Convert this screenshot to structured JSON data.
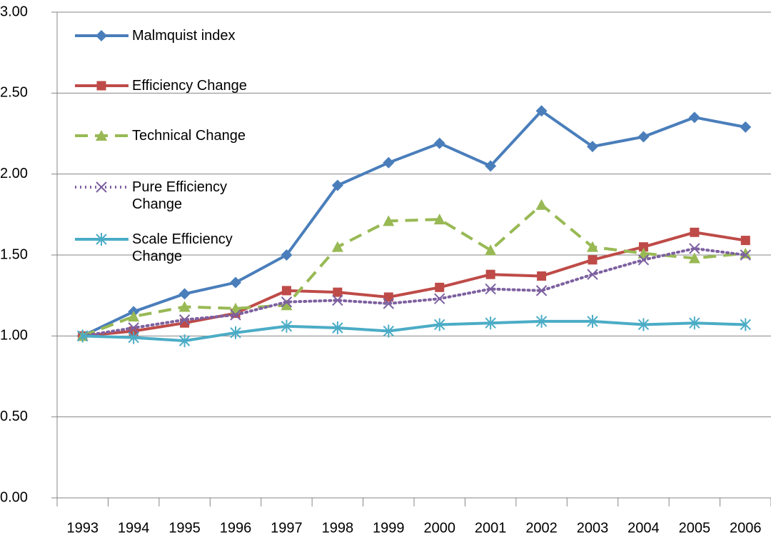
{
  "chart_data": {
    "type": "line",
    "categories": [
      "1993",
      "1994",
      "1995",
      "1996",
      "1997",
      "1998",
      "1999",
      "2000",
      "2001",
      "2002",
      "2003",
      "2004",
      "2005",
      "2006"
    ],
    "ylim": [
      0,
      3
    ],
    "yticks": [
      {
        "value": 0,
        "label": "0.00"
      },
      {
        "value": 0.5,
        "label": "0.50"
      },
      {
        "value": 1,
        "label": "1.00"
      },
      {
        "value": 1.5,
        "label": "1.50"
      },
      {
        "value": 2,
        "label": "2.00"
      },
      {
        "value": 2.5,
        "label": "2.50"
      },
      {
        "value": 3,
        "label": "3.00"
      }
    ],
    "grid": true,
    "legend": "upper left",
    "series": [
      {
        "name": "Malmquist index",
        "color": "#4a7ebb",
        "marker": "diamond",
        "dash": "solid",
        "values": [
          1.0,
          1.15,
          1.26,
          1.33,
          1.5,
          1.93,
          2.07,
          2.19,
          2.05,
          2.39,
          2.17,
          2.23,
          2.35,
          2.29
        ]
      },
      {
        "name": "Efficiency Change",
        "color": "#be4b48",
        "marker": "square",
        "dash": "solid",
        "values": [
          1.0,
          1.03,
          1.08,
          1.14,
          1.28,
          1.27,
          1.24,
          1.3,
          1.38,
          1.37,
          1.47,
          1.55,
          1.64,
          1.59
        ]
      },
      {
        "name": "Technical Change",
        "color": "#98b954",
        "marker": "triangle",
        "dash": "dashed",
        "values": [
          1.0,
          1.12,
          1.18,
          1.17,
          1.19,
          1.55,
          1.71,
          1.72,
          1.53,
          1.81,
          1.55,
          1.51,
          1.48,
          1.51
        ]
      },
      {
        "name": "Pure Efficiency Change",
        "color": "#7d60a0",
        "marker": "x",
        "dash": "dotted",
        "values": [
          1.0,
          1.05,
          1.1,
          1.13,
          1.21,
          1.22,
          1.2,
          1.23,
          1.29,
          1.28,
          1.38,
          1.47,
          1.54,
          1.5
        ]
      },
      {
        "name": "Scale Efficiency Change",
        "color": "#4bacc6",
        "marker": "asterisk",
        "dash": "solid",
        "values": [
          1.0,
          0.99,
          0.97,
          1.02,
          1.06,
          1.05,
          1.03,
          1.07,
          1.08,
          1.09,
          1.09,
          1.07,
          1.08,
          1.07
        ]
      }
    ]
  }
}
